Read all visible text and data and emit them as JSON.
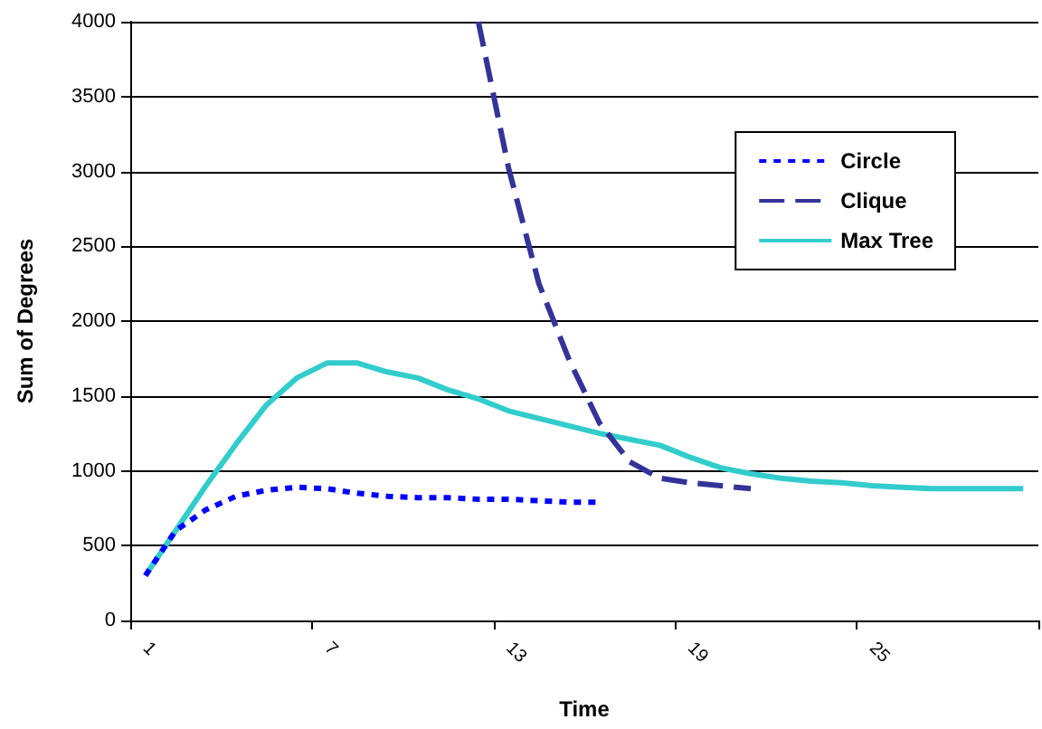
{
  "chart_data": {
    "type": "line",
    "xlabel": "Time",
    "ylabel": "Sum of Degrees",
    "categories": [
      "1",
      null,
      null,
      null,
      null,
      null,
      "7",
      null,
      null,
      null,
      null,
      null,
      "13",
      null,
      null,
      null,
      null,
      null,
      "19",
      null,
      null,
      null,
      null,
      null,
      "25",
      null,
      null,
      null,
      null,
      null
    ],
    "series": [
      {
        "name": "Circle",
        "color": "#0000ff",
        "line_style": "dotted",
        "values": [
          300,
          600,
          740,
          830,
          870,
          890,
          880,
          850,
          830,
          820,
          820,
          810,
          810,
          800,
          790,
          790,
          null,
          null,
          null,
          null,
          null,
          null,
          null,
          null,
          null,
          null,
          null,
          null,
          null,
          null
        ]
      },
      {
        "name": "Clique",
        "color": "#333399",
        "line_style": "dashed",
        "values": [
          null,
          null,
          null,
          null,
          null,
          null,
          null,
          null,
          null,
          null,
          null,
          4000,
          3020,
          2250,
          1740,
          1320,
          1060,
          950,
          920,
          900,
          880,
          null,
          null,
          null,
          null,
          null,
          null,
          null,
          null,
          null
        ]
      },
      {
        "name": "Max Tree",
        "color": "#33cccc",
        "line_style": "solid",
        "values": [
          300,
          600,
          900,
          1180,
          1440,
          1620,
          1720,
          1720,
          1660,
          1620,
          1540,
          1480,
          1400,
          1350,
          1300,
          1250,
          1210,
          1170,
          1090,
          1020,
          980,
          950,
          930,
          920,
          900,
          890,
          880,
          880,
          880,
          880
        ]
      }
    ],
    "ylim": [
      0,
      4000
    ],
    "yticks": [
      0,
      500,
      1000,
      1500,
      2000,
      2500,
      3000,
      3500,
      4000
    ],
    "grid": "y",
    "legend": "top right",
    "marker": "none"
  }
}
